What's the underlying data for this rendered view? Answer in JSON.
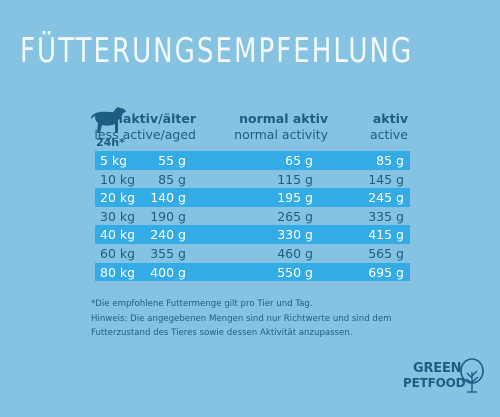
{
  "title": "Fütterungsempfehlung",
  "hours_label": "24h*",
  "headers": [
    {
      "main": "inaktiv/älter",
      "sub": "less active/aged"
    },
    {
      "main": "normal aktiv",
      "sub": "normal activity"
    },
    {
      "main": "aktiv",
      "sub": "active"
    }
  ],
  "rows": [
    {
      "weight": "5 kg",
      "inactive": "55 g",
      "normal": "65 g",
      "active": "85 g",
      "highlight": true
    },
    {
      "weight": "10 kg",
      "inactive": "85 g",
      "normal": "115 g",
      "active": "145 g",
      "highlight": false
    },
    {
      "weight": "20 kg",
      "inactive": "140 g",
      "normal": "195 g",
      "active": "245 g",
      "highlight": true
    },
    {
      "weight": "30 kg",
      "inactive": "190 g",
      "normal": "265 g",
      "active": "335 g",
      "highlight": false
    },
    {
      "weight": "40 kg",
      "inactive": "240 g",
      "normal": "330 g",
      "active": "415 g",
      "highlight": true
    },
    {
      "weight": "60 kg",
      "inactive": "355 g",
      "normal": "460 g",
      "active": "565 g",
      "highlight": false
    },
    {
      "weight": "80 kg",
      "inactive": "400 g",
      "normal": "550 g",
      "active": "695 g",
      "highlight": true
    }
  ],
  "notes": {
    "line1": "*Die empfohlene Futtermenge gilt pro Tier und Tag.",
    "line2": "Hinweis: Die angegebenen Mengen sind nur Richtwerte und sind dem",
    "line3": "Futterzustand des Tieres sowie dessen Aktivität anzupassen."
  },
  "logo": {
    "line1": "GREEN",
    "line2": "PETFOOD"
  },
  "colors": {
    "background": "#86c3e3",
    "highlight_row": "#33abe5",
    "text": "#1d5d84",
    "title": "#f3f9fd"
  }
}
